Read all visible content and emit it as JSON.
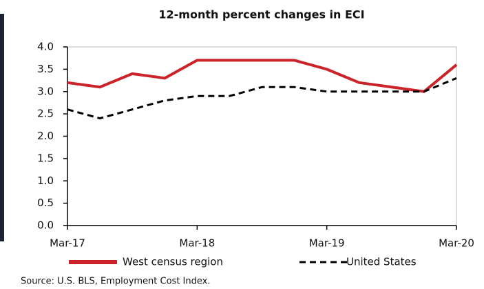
{
  "chart_data": {
    "type": "line",
    "title": "12-month percent changes in ECI",
    "categories": [
      "Mar-17",
      null,
      null,
      null,
      "Mar-18",
      null,
      null,
      null,
      "Mar-19",
      null,
      null,
      null,
      "Mar-20"
    ],
    "series": [
      {
        "name": "West census region",
        "color": "#cc2229",
        "line_style": "solid",
        "values": [
          3.2,
          3.1,
          3.4,
          3.3,
          3.7,
          3.7,
          3.7,
          3.7,
          3.5,
          3.2,
          3.1,
          3.0,
          3.6
        ]
      },
      {
        "name": "United States",
        "color": "#000000",
        "line_style": "dashed",
        "values": [
          2.6,
          2.4,
          2.6,
          2.8,
          2.9,
          2.9,
          3.1,
          3.1,
          3.0,
          3.0,
          3.0,
          3.0,
          3.3
        ]
      }
    ],
    "ylim": [
      0,
      4
    ],
    "yticks": [
      {
        "value": 0,
        "label": "0.0"
      },
      {
        "value": 0.5,
        "label": "0.5"
      },
      {
        "value": 1,
        "label": "1.0"
      },
      {
        "value": 1.5,
        "label": "1.5"
      },
      {
        "value": 2,
        "label": "2.0"
      },
      {
        "value": 2.5,
        "label": "2.5"
      },
      {
        "value": 3,
        "label": "3.0"
      },
      {
        "value": 3.5,
        "label": "3.5"
      },
      {
        "value": 4,
        "label": "4.0"
      }
    ],
    "grid": false,
    "legend": "bottom",
    "source": "Source: U.S. BLS, Employment Cost Index."
  }
}
